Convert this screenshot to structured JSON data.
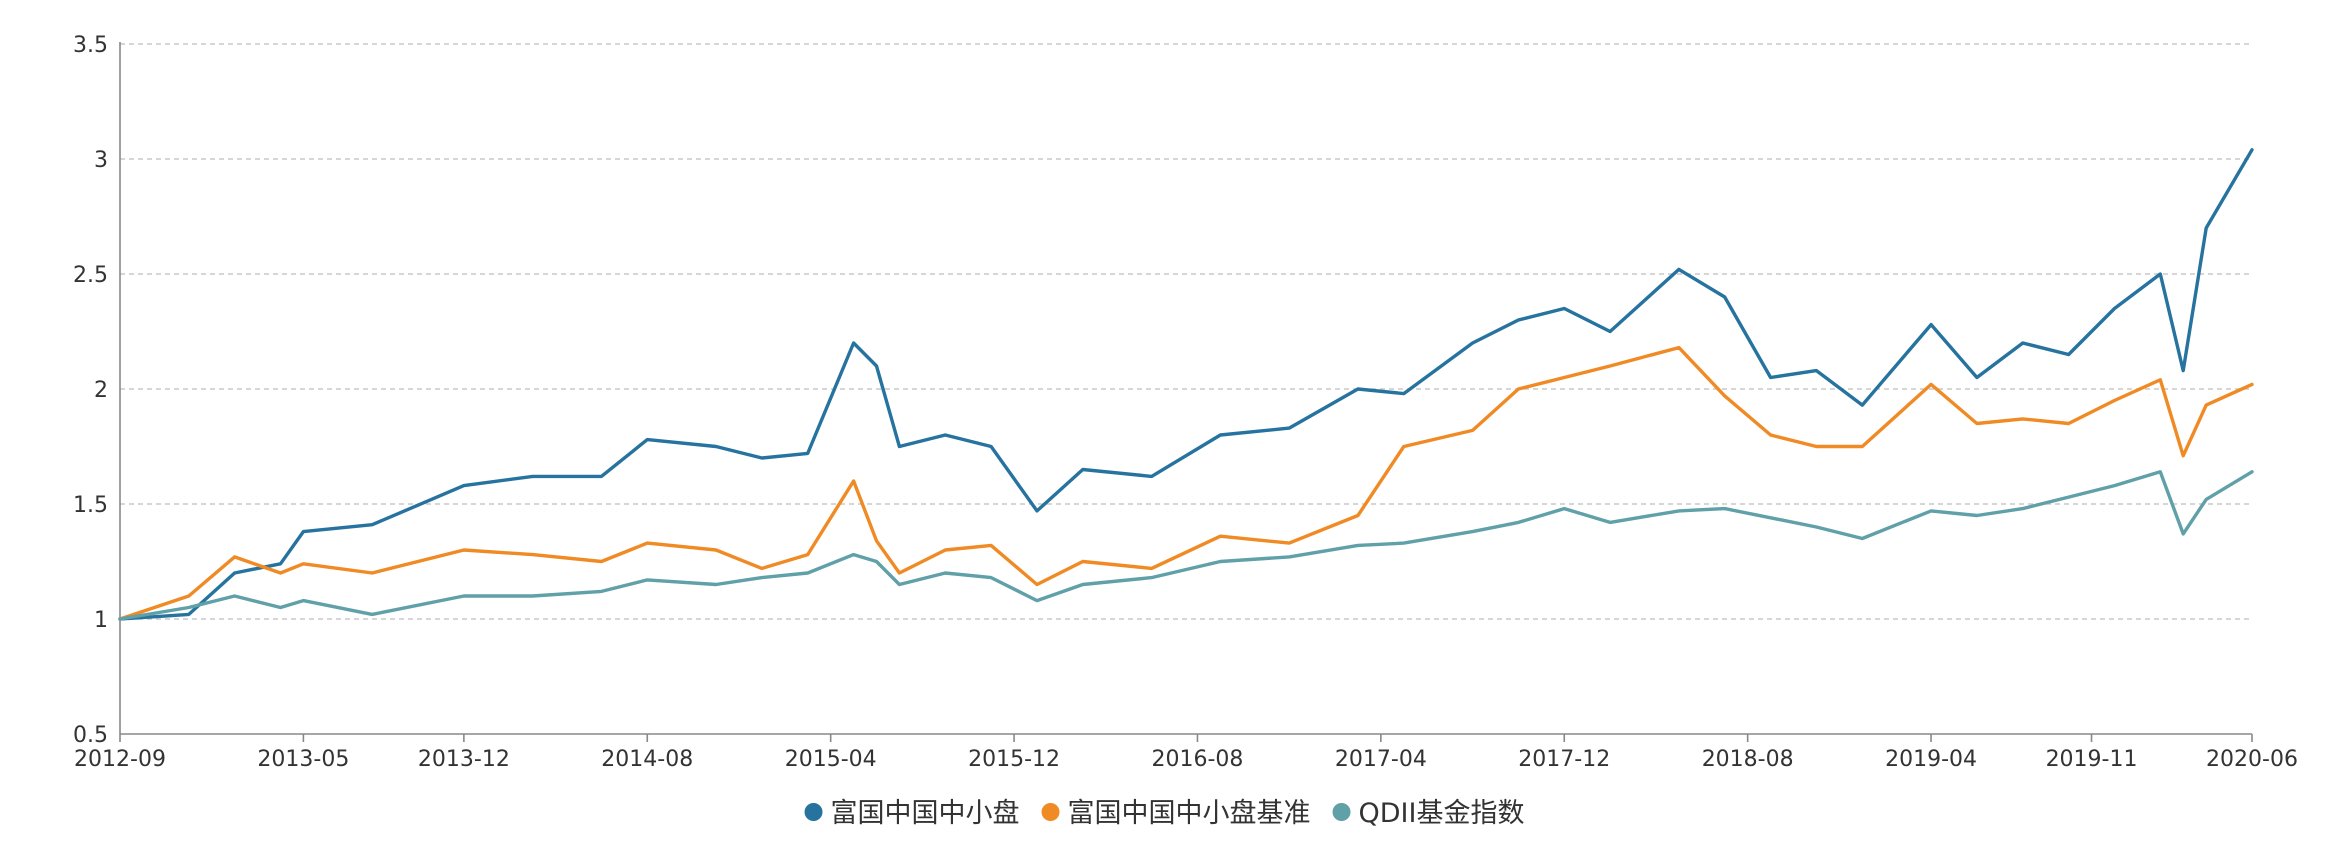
{
  "chart_data": {
    "type": "line",
    "title": "",
    "xlabel": "",
    "ylabel": "",
    "ylim": [
      0.5,
      3.5
    ],
    "yticks": [
      "0.5",
      "1",
      "1.5",
      "2",
      "2.5",
      "3",
      "3.5"
    ],
    "xticks": [
      "2012-09",
      "2013-05",
      "2013-12",
      "2014-08",
      "2015-04",
      "2015-12",
      "2016-08",
      "2017-04",
      "2017-12",
      "2018-08",
      "2019-04",
      "2019-11",
      "2020-06"
    ],
    "xlim": [
      "2012-09",
      "2020-06"
    ],
    "grid": true,
    "legend_position": "bottom-center",
    "x": [
      "2012-09",
      "2012-12",
      "2013-02",
      "2013-04",
      "2013-05",
      "2013-08",
      "2013-12",
      "2014-03",
      "2014-06",
      "2014-08",
      "2014-11",
      "2015-01",
      "2015-03",
      "2015-05",
      "2015-06",
      "2015-07",
      "2015-09",
      "2015-11",
      "2016-01",
      "2016-03",
      "2016-06",
      "2016-09",
      "2016-12",
      "2017-03",
      "2017-05",
      "2017-08",
      "2017-10",
      "2017-12",
      "2018-02",
      "2018-05",
      "2018-07",
      "2018-09",
      "2018-11",
      "2019-01",
      "2019-04",
      "2019-06",
      "2019-08",
      "2019-10",
      "2019-12",
      "2020-02",
      "2020-03",
      "2020-04",
      "2020-06"
    ],
    "series": [
      {
        "name": "富国中国中小盘",
        "color": "#26739f",
        "values": [
          1.0,
          1.02,
          1.2,
          1.24,
          1.38,
          1.41,
          1.58,
          1.62,
          1.62,
          1.78,
          1.75,
          1.7,
          1.72,
          2.2,
          2.1,
          1.75,
          1.8,
          1.75,
          1.47,
          1.65,
          1.62,
          1.8,
          1.83,
          2.0,
          1.98,
          2.2,
          2.3,
          2.35,
          2.25,
          2.52,
          2.4,
          2.05,
          2.08,
          1.93,
          2.28,
          2.05,
          2.2,
          2.15,
          2.35,
          2.5,
          2.08,
          2.7,
          3.04
        ]
      },
      {
        "name": "富国中国中小盘基准",
        "color": "#f08a24",
        "values": [
          1.0,
          1.1,
          1.27,
          1.2,
          1.24,
          1.2,
          1.3,
          1.28,
          1.25,
          1.33,
          1.3,
          1.22,
          1.28,
          1.6,
          1.34,
          1.2,
          1.3,
          1.32,
          1.15,
          1.25,
          1.22,
          1.36,
          1.33,
          1.45,
          1.75,
          1.82,
          2.0,
          2.05,
          2.1,
          2.18,
          1.97,
          1.8,
          1.75,
          1.75,
          2.02,
          1.85,
          1.87,
          1.85,
          1.95,
          2.04,
          1.71,
          1.93,
          2.02
        ]
      },
      {
        "name": "QDII基金指数",
        "color": "#60a0a8",
        "values": [
          1.0,
          1.05,
          1.1,
          1.05,
          1.08,
          1.02,
          1.1,
          1.1,
          1.12,
          1.17,
          1.15,
          1.18,
          1.2,
          1.28,
          1.25,
          1.15,
          1.2,
          1.18,
          1.08,
          1.15,
          1.18,
          1.25,
          1.27,
          1.32,
          1.33,
          1.38,
          1.42,
          1.48,
          1.42,
          1.47,
          1.48,
          1.44,
          1.4,
          1.35,
          1.47,
          1.45,
          1.48,
          1.53,
          1.58,
          1.64,
          1.37,
          1.52,
          1.64
        ]
      }
    ]
  }
}
